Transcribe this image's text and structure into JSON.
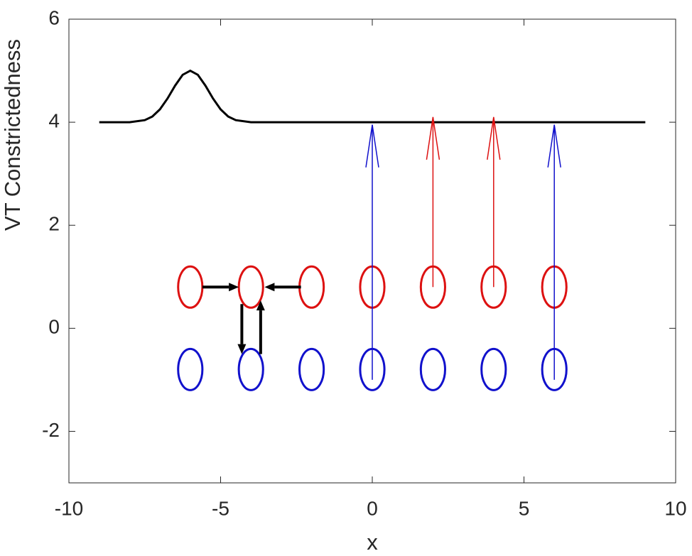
{
  "chart_data": {
    "type": "line",
    "xlabel": "x",
    "ylabel": "VT Constrictedness",
    "xlim": [
      -10,
      10
    ],
    "ylim": [
      -3,
      6
    ],
    "xticks": [
      -10,
      -5,
      0,
      5,
      10
    ],
    "yticks": [
      -2,
      0,
      2,
      4,
      6
    ],
    "series": [
      {
        "color": "#000000",
        "x": [
          -9,
          -8,
          -7.5,
          -7.25,
          -7,
          -6.75,
          -6.5,
          -6.25,
          -6,
          -5.75,
          -5.5,
          -5.25,
          -5,
          -4.75,
          -4.5,
          -4,
          -3,
          0,
          3,
          6,
          9
        ],
        "values": [
          4,
          4,
          4.04,
          4.11,
          4.25,
          4.46,
          4.71,
          4.92,
          5,
          4.92,
          4.71,
          4.46,
          4.25,
          4.11,
          4.04,
          4,
          4,
          4,
          4,
          4,
          4
        ]
      }
    ],
    "ellipses": [
      {
        "color": "#dd1111",
        "x": [
          -6,
          -4,
          -2,
          0,
          2,
          4,
          6
        ],
        "y": [
          0.8,
          0.8,
          0.8,
          0.8,
          0.8,
          0.8,
          0.8
        ],
        "rx": 0.4,
        "ry": 0.4
      },
      {
        "color": "#1111cc",
        "x": [
          -6,
          -4,
          -2,
          0,
          2,
          4,
          6
        ],
        "y": [
          -0.8,
          -0.8,
          -0.8,
          -0.8,
          -0.8,
          -0.8,
          -0.8
        ],
        "rx": 0.4,
        "ry": 0.4
      }
    ],
    "arrows": [
      {
        "color": "#1111cc",
        "head": "open",
        "x": [
          0,
          0
        ],
        "y": [
          -1,
          3.95
        ]
      },
      {
        "color": "#dd1111",
        "head": "open",
        "x": [
          2,
          2
        ],
        "y": [
          0.8,
          4.1
        ]
      },
      {
        "color": "#dd1111",
        "head": "open",
        "x": [
          4,
          4
        ],
        "y": [
          0.8,
          4.1
        ]
      },
      {
        "color": "#1111cc",
        "head": "open",
        "x": [
          6,
          6
        ],
        "y": [
          -1,
          3.95
        ]
      },
      {
        "color": "#000000",
        "head": "filled",
        "x": [
          -5.6,
          -4.4
        ],
        "y": [
          0.8,
          0.8
        ]
      },
      {
        "color": "#000000",
        "head": "filled",
        "x": [
          -2.35,
          -3.55
        ],
        "y": [
          0.8,
          0.8
        ]
      },
      {
        "color": "#000000",
        "head": "filled",
        "x": [
          -4.3,
          -4.3
        ],
        "y": [
          0.47,
          -0.5
        ]
      },
      {
        "color": "#000000",
        "head": "filled",
        "x": [
          -3.68,
          -3.68
        ],
        "y": [
          -0.5,
          0.54
        ]
      }
    ]
  }
}
